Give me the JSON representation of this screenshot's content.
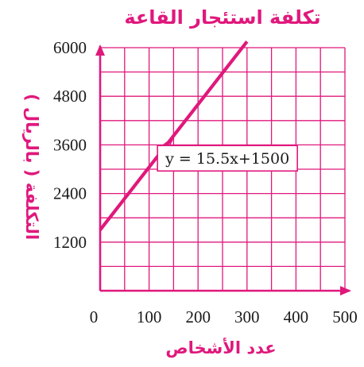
{
  "chart_data": {
    "type": "line",
    "title": "تكلفة استئجار القاعة",
    "xlabel": "عدد الأشخاص",
    "ylabel": "التكلفة ( بالريال )",
    "xlim": [
      0,
      500
    ],
    "ylim": [
      0,
      6000
    ],
    "x_ticks": [
      0,
      100,
      200,
      300,
      400,
      500
    ],
    "y_ticks": [
      1200,
      2400,
      3600,
      4800,
      6000
    ],
    "x_ticks_labels": [
      "0",
      "100",
      "200",
      "300",
      "400",
      "500"
    ],
    "y_ticks_labels": [
      "1200",
      "2400",
      "3600",
      "4800",
      "6000"
    ],
    "x_grid_step": 50,
    "y_grid_step": 600,
    "grid": true,
    "series": [
      {
        "x": [
          0,
          300
        ],
        "y": [
          1500,
          6150
        ],
        "color": "#e0187c"
      }
    ],
    "annotation": {
      "text": "y = 15.5x+1500",
      "points_to": [
        150,
        3825
      ],
      "label_near": [
        260,
        3270
      ]
    },
    "colors": {
      "accent": "#e0187c",
      "grid": "#e0187c",
      "text": "#1a1a1a"
    }
  }
}
